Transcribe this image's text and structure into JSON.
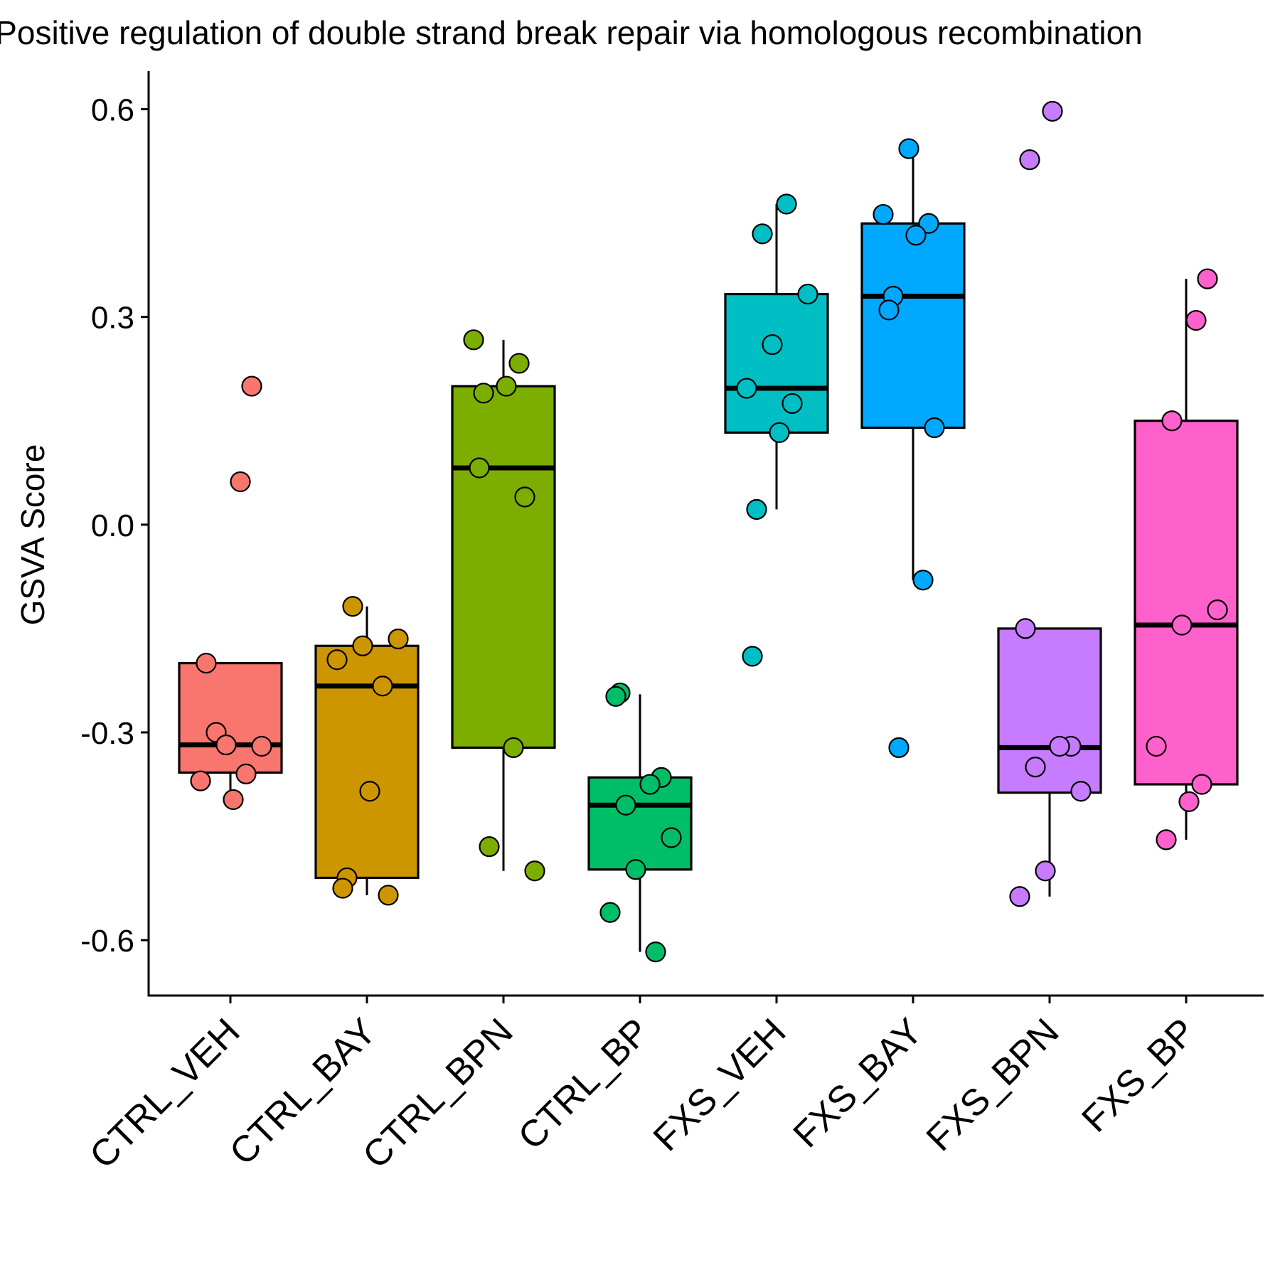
{
  "chart_data": {
    "type": "box",
    "title": "Positive regulation of double strand break repair via homologous recombination",
    "xlabel": "",
    "ylabel": "GSVA Score",
    "ylim": [
      -0.68,
      0.655
    ],
    "yticks": [
      -0.6,
      -0.3,
      0.0,
      0.3,
      0.6
    ],
    "ytick_labels": [
      "-0.6",
      "-0.3",
      "0.0",
      "0.3",
      "0.6"
    ],
    "grid": false,
    "legend": "none",
    "categories": [
      "CTRL_VEH",
      "CTRL_BAY",
      "CTRL_BPN",
      "CTRL_BP",
      "FXS_VEH",
      "FXS_BAY",
      "FXS_BPN",
      "FXS_BP"
    ],
    "colors": [
      "#F8766D",
      "#CD9600",
      "#7CAE00",
      "#00BE67",
      "#00BFC4",
      "#00A9FF",
      "#C77CFF",
      "#FF61CC"
    ],
    "boxes": [
      {
        "name": "CTRL_VEH",
        "whisker_low": -0.397,
        "q1": -0.358,
        "median": -0.318,
        "q3": -0.2,
        "whisker_high": -0.2
      },
      {
        "name": "CTRL_BAY",
        "whisker_low": -0.535,
        "q1": -0.51,
        "median": -0.233,
        "q3": -0.175,
        "whisker_high": -0.118
      },
      {
        "name": "CTRL_BPN",
        "whisker_low": -0.5,
        "q1": -0.322,
        "median": 0.082,
        "q3": 0.2,
        "whisker_high": 0.267
      },
      {
        "name": "CTRL_BP",
        "whisker_low": -0.617,
        "q1": -0.498,
        "median": -0.405,
        "q3": -0.365,
        "whisker_high": -0.245
      },
      {
        "name": "FXS_VEH",
        "whisker_low": 0.022,
        "q1": 0.133,
        "median": 0.197,
        "q3": 0.333,
        "whisker_high": 0.463
      },
      {
        "name": "FXS_BAY",
        "whisker_low": -0.08,
        "q1": 0.14,
        "median": 0.33,
        "q3": 0.435,
        "whisker_high": 0.543
      },
      {
        "name": "FXS_BPN",
        "whisker_low": -0.537,
        "q1": -0.387,
        "median": -0.322,
        "q3": -0.15,
        "whisker_high": -0.15
      },
      {
        "name": "FXS_BP",
        "whisker_low": -0.455,
        "q1": -0.375,
        "median": -0.145,
        "q3": 0.15,
        "whisker_high": 0.355
      }
    ],
    "points": [
      [
        -0.2,
        0.2,
        0.062,
        -0.3,
        -0.32,
        -0.318,
        -0.37,
        -0.36,
        -0.397
      ],
      [
        -0.118,
        -0.165,
        -0.175,
        -0.195,
        -0.233,
        -0.385,
        -0.51,
        -0.525,
        -0.535
      ],
      [
        0.267,
        0.233,
        0.2,
        0.19,
        0.082,
        0.04,
        -0.322,
        -0.465,
        -0.5
      ],
      [
        -0.243,
        -0.248,
        -0.365,
        -0.375,
        -0.405,
        -0.452,
        -0.498,
        -0.56,
        -0.617
      ],
      [
        0.463,
        0.42,
        0.333,
        0.26,
        0.197,
        0.175,
        0.133,
        0.022,
        -0.19
      ],
      [
        0.543,
        0.448,
        0.435,
        0.418,
        0.33,
        0.31,
        0.14,
        -0.08,
        -0.322
      ],
      [
        0.597,
        0.527,
        -0.15,
        -0.32,
        -0.32,
        -0.35,
        -0.385,
        -0.5,
        -0.537
      ],
      [
        0.355,
        0.295,
        0.15,
        -0.123,
        -0.145,
        -0.32,
        -0.375,
        -0.4,
        -0.455
      ]
    ]
  }
}
